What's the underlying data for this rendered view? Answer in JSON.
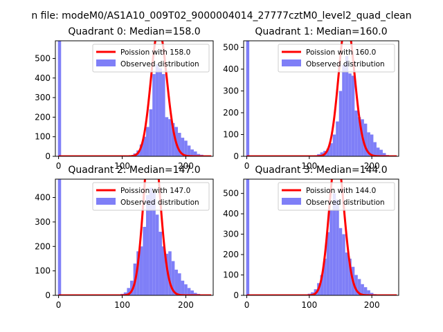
{
  "figure": {
    "suptitle": "n file: modeM0/AS1A10_009T02_9000004014_27777cztM0_level2_quad_clean"
  },
  "colors": {
    "fit": "#ff0000",
    "hist": "#7f7ff7",
    "axes": "#000000"
  },
  "chart_data": [
    {
      "type": "bar",
      "title": "Quadrant 0: Median=158.0",
      "xlim": [
        -5,
        243
      ],
      "ylim": [
        0,
        590
      ],
      "xticks": [
        0,
        100,
        200
      ],
      "yticks": [
        0,
        100,
        200,
        300,
        400,
        500
      ],
      "median": 158.0,
      "legend": {
        "location": "top-right",
        "fit_label": "Poission with 158.0",
        "hist_label": "Observed distribution"
      },
      "bin_width": 5,
      "zero_bin": {
        "x": 0,
        "count": 590
      },
      "bins_x": [
        115,
        120,
        125,
        130,
        135,
        140,
        145,
        150,
        155,
        160,
        165,
        170,
        175,
        180,
        185,
        190,
        195,
        200,
        205,
        210,
        215,
        220,
        225,
        230,
        235
      ],
      "bins_y": [
        5,
        15,
        30,
        60,
        100,
        150,
        240,
        420,
        470,
        450,
        420,
        200,
        190,
        170,
        150,
        120,
        95,
        80,
        55,
        35,
        25,
        12,
        8,
        4,
        2
      ],
      "fit_x_range": [
        0,
        240
      ]
    },
    {
      "type": "bar",
      "title": "Quadrant 1: Median=160.0",
      "xlim": [
        -5,
        243
      ],
      "ylim": [
        0,
        530
      ],
      "xticks": [
        0,
        100,
        200
      ],
      "yticks": [
        0,
        100,
        200,
        300,
        400,
        500
      ],
      "median": 160.0,
      "legend": {
        "location": "top-right",
        "fit_label": "Poission with 160.0",
        "hist_label": "Observed distribution"
      },
      "bin_width": 5,
      "zero_bin": {
        "x": 0,
        "count": 530
      },
      "bins_x": [
        110,
        115,
        120,
        125,
        130,
        135,
        140,
        145,
        150,
        155,
        160,
        165,
        170,
        175,
        180,
        185,
        190,
        195,
        200,
        205,
        210,
        215,
        220,
        225,
        230,
        235
      ],
      "bins_y": [
        5,
        10,
        18,
        25,
        35,
        60,
        100,
        160,
        300,
        420,
        460,
        380,
        370,
        210,
        180,
        170,
        150,
        110,
        100,
        65,
        40,
        30,
        15,
        6,
        3,
        1
      ],
      "fit_x_range": [
        0,
        240
      ]
    },
    {
      "type": "bar",
      "title": "Quadrant 2: Median=147.0",
      "xlim": [
        -5,
        243
      ],
      "ylim": [
        0,
        475
      ],
      "xticks": [
        0,
        100,
        200
      ],
      "yticks": [
        0,
        100,
        200,
        300,
        400
      ],
      "median": 147.0,
      "legend": {
        "location": "top-right",
        "fit_label": "Poission with 147.0",
        "hist_label": "Observed distribution"
      },
      "bin_width": 5,
      "zero_bin": {
        "x": 0,
        "count": 475
      },
      "bins_x": [
        95,
        100,
        105,
        110,
        115,
        120,
        125,
        130,
        135,
        140,
        145,
        150,
        155,
        160,
        165,
        170,
        175,
        180,
        185,
        190,
        195,
        200,
        205,
        210,
        215,
        220,
        225,
        230
      ],
      "bins_y": [
        3,
        6,
        12,
        30,
        60,
        130,
        180,
        200,
        280,
        410,
        440,
        420,
        330,
        260,
        200,
        170,
        180,
        140,
        105,
        90,
        60,
        45,
        30,
        20,
        10,
        6,
        3,
        1
      ],
      "fit_x_range": [
        0,
        240
      ]
    },
    {
      "type": "bar",
      "title": "Quadrant 3: Median=144.0",
      "xlim": [
        -5,
        243
      ],
      "ylim": [
        0,
        570
      ],
      "xticks": [
        0,
        100,
        200
      ],
      "yticks": [
        0,
        100,
        200,
        300,
        400,
        500
      ],
      "median": 144.0,
      "legend": {
        "location": "top-right",
        "fit_label": "Poission with 144.0",
        "hist_label": "Observed distribution"
      },
      "bin_width": 5,
      "zero_bin": {
        "x": 0,
        "count": 570
      },
      "bins_x": [
        95,
        100,
        105,
        110,
        115,
        120,
        125,
        130,
        135,
        140,
        145,
        150,
        155,
        160,
        165,
        170,
        175,
        180,
        185,
        190,
        195,
        200,
        205,
        210,
        215,
        220
      ],
      "bins_y": [
        3,
        8,
        15,
        30,
        60,
        100,
        180,
        310,
        420,
        500,
        470,
        330,
        300,
        210,
        180,
        140,
        100,
        80,
        55,
        40,
        25,
        12,
        6,
        4,
        2,
        1
      ],
      "fit_x_range": [
        0,
        240
      ]
    }
  ]
}
